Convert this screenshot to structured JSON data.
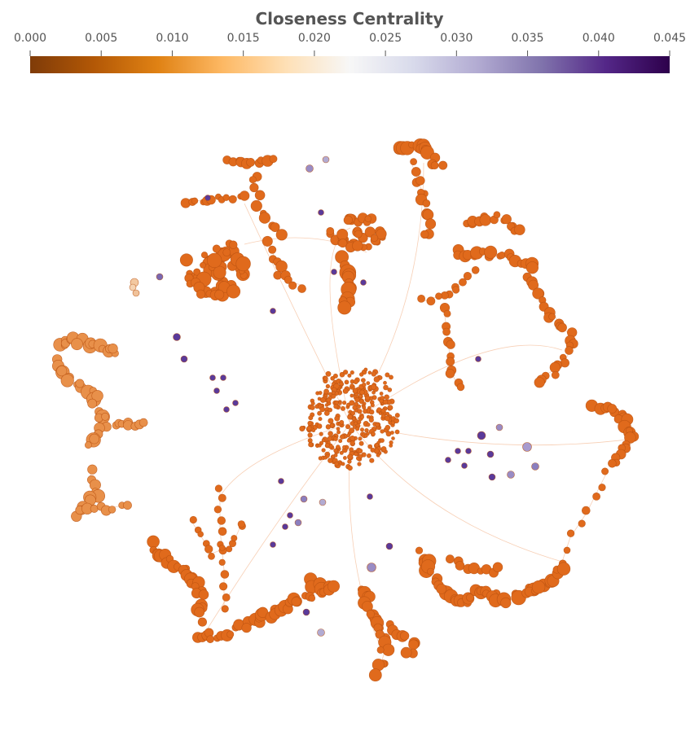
{
  "figure": {
    "title": "Closeness Centrality"
  },
  "colorbar": {
    "ticks": [
      "0.000",
      "0.005",
      "0.010",
      "0.015",
      "0.020",
      "0.025",
      "0.030",
      "0.035",
      "0.040",
      "0.045"
    ],
    "range": [
      0,
      0.045
    ],
    "colormap": [
      "#7f3b08",
      "#b35806",
      "#e08214",
      "#fdb863",
      "#fee0b6",
      "#f7f7f7",
      "#d8daeb",
      "#b2abd2",
      "#8073ac",
      "#542788",
      "#2d004b"
    ]
  },
  "network": {
    "node_color_main": "#e06a1c",
    "node_color_peripheral": "#5a3a9a"
  }
}
